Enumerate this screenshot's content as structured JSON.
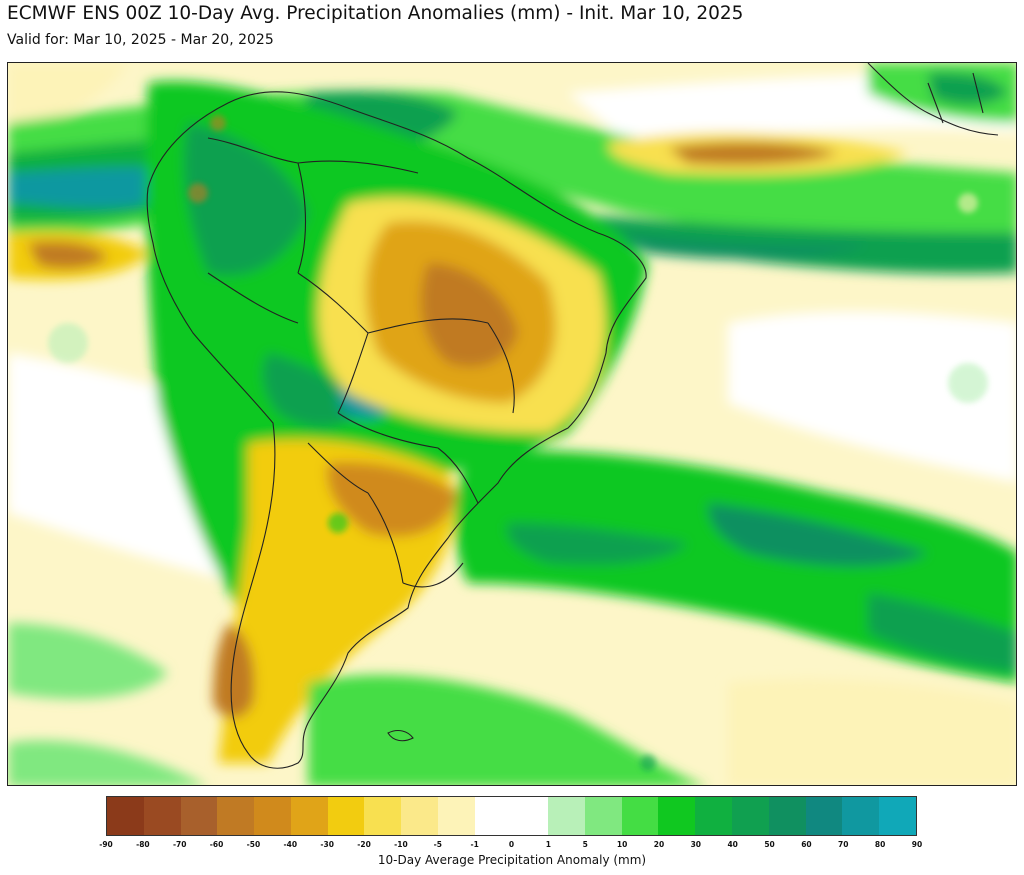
{
  "header": {
    "title": "ECMWF ENS 00Z 10-Day Avg. Precipitation Anomalies (mm) - Init. Mar 10, 2025",
    "subtitle": "Valid for: Mar 10, 2025 - Mar 20, 2025"
  },
  "colorbar": {
    "label": "10-Day Average Precipitation Anomaly (mm)",
    "ticks": [
      "-90",
      "-80",
      "-70",
      "-60",
      "-50",
      "-40",
      "-30",
      "-20",
      "-10",
      "-5",
      "-1",
      "0",
      "1",
      "5",
      "10",
      "20",
      "30",
      "40",
      "50",
      "60",
      "70",
      "80",
      "90"
    ],
    "colors": [
      "#8b3a1a",
      "#9a4a22",
      "#a8602c",
      "#c07a24",
      "#d08a1c",
      "#e0a418",
      "#f2cc10",
      "#f8e050",
      "#fbe98a",
      "#fdf3b8",
      "#ffffff",
      "#ffffff",
      "#b8f0b8",
      "#80e880",
      "#44dd44",
      "#10c820",
      "#10b040",
      "#10a050",
      "#109060",
      "#108880",
      "#1098a0",
      "#10a8b8"
    ]
  },
  "map": {
    "region": "South America",
    "palette": {
      "ocean_neutral": "#ffffff",
      "dry_light": "#fbe98a",
      "dry_medium": "#f2cc10",
      "dry_strong": "#c07a24",
      "wet_light": "#80e880",
      "wet_medium": "#10c820",
      "wet_strong": "#10a050",
      "wet_extreme": "#1098a0",
      "border": "#222222"
    }
  }
}
